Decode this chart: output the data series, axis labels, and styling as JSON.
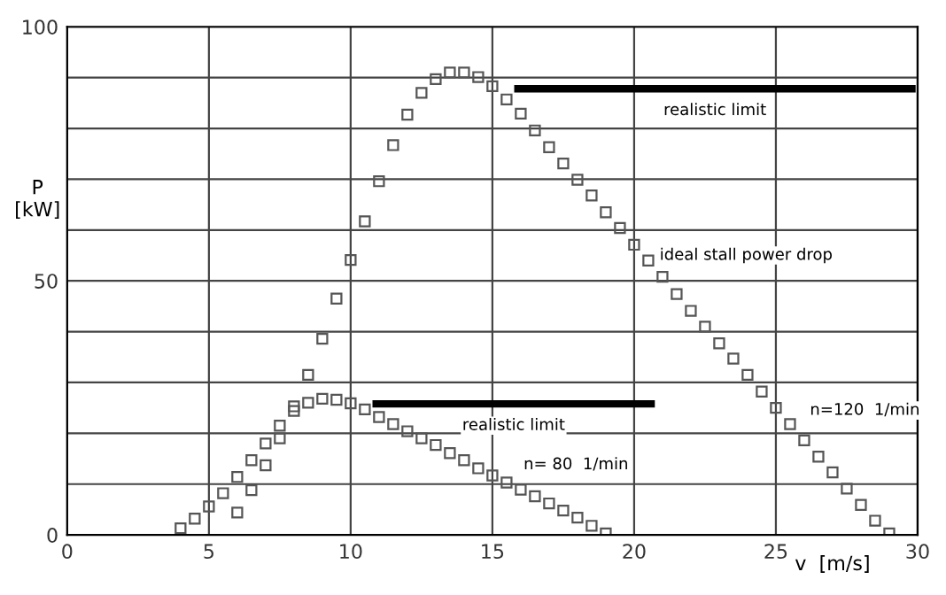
{
  "chart_data": {
    "type": "scatter",
    "xlabel": "v  [m/s]",
    "ylabel": "P\n[kW]",
    "marker": "square",
    "grid": true,
    "legend": false,
    "xlim": [
      0,
      30
    ],
    "xticks": [
      0,
      5,
      10,
      15,
      20,
      25,
      30
    ],
    "ylim": [
      0,
      100
    ],
    "yticks": [
      0,
      {
        "value": 10,
        "label": null
      },
      {
        "value": 20,
        "label": null
      },
      {
        "value": 30,
        "label": null
      },
      {
        "value": 40,
        "label": null
      },
      50,
      {
        "value": 60,
        "label": null
      },
      {
        "value": 70,
        "label": null
      },
      {
        "value": 80,
        "label": null
      },
      {
        "value": 90,
        "label": null
      },
      100
    ],
    "series": [
      {
        "name": "n= 80  1/min",
        "color": "#555555",
        "x": [
          4,
          4.5,
          5,
          5.5,
          6,
          6.5,
          7,
          7.5,
          8,
          8.5,
          9,
          9.5,
          10,
          10.5,
          11,
          11.5,
          12,
          12.5,
          13,
          13.5,
          14,
          14.5,
          15,
          15.5,
          16,
          16.5,
          17,
          17.5,
          18,
          18.5,
          19
        ],
        "values": [
          1.3,
          3.2,
          5.6,
          8.2,
          11.4,
          14.7,
          18,
          21.5,
          25.3,
          26,
          26.8,
          26.6,
          25.9,
          24.7,
          23.2,
          21.8,
          20.4,
          19,
          17.7,
          16.1,
          14.7,
          13.1,
          11.7,
          10.3,
          8.9,
          7.6,
          6.2,
          4.8,
          3.4,
          1.8,
          0.3
        ]
      },
      {
        "name": "n=120  1/min",
        "color": "#555555",
        "x": [
          6,
          6.5,
          7,
          7.5,
          8,
          8.5,
          9,
          9.5,
          10,
          10.5,
          11,
          11.5,
          12,
          12.5,
          13,
          13.5,
          14,
          14.5,
          15,
          15.5,
          16,
          16.5,
          17,
          17.5,
          18,
          18.5,
          19,
          19.5,
          20,
          20.5,
          21,
          21.5,
          22,
          22.5,
          23,
          23.5,
          24,
          24.5,
          25,
          25.5,
          26,
          26.5,
          27,
          27.5,
          28,
          28.5,
          29
        ],
        "values": [
          4.4,
          8.8,
          13.7,
          19,
          24.4,
          31.5,
          38.6,
          46.5,
          54.1,
          61.7,
          69.6,
          76.7,
          82.7,
          87,
          89.7,
          91,
          91,
          90.1,
          88.3,
          85.7,
          82.9,
          79.6,
          76.3,
          73.1,
          69.9,
          66.8,
          63.5,
          60.4,
          57.1,
          54,
          50.8,
          47.4,
          44.1,
          41,
          37.7,
          34.7,
          31.5,
          28.2,
          25,
          21.8,
          18.6,
          15.4,
          12.3,
          9.1,
          5.9,
          2.8,
          0.3
        ]
      },
      {
        "type": "line",
        "name": "realistic limit",
        "color": "#000000",
        "marker": "none",
        "x": [
          15.9,
          29.8
        ],
        "values": [
          87.8,
          87.8
        ]
      },
      {
        "type": "line",
        "name": "realistic limit",
        "color": "#000000",
        "marker": "none",
        "x": [
          10.9,
          20.6
        ],
        "values": [
          25.8,
          25.8
        ]
      }
    ],
    "annotations": [
      {
        "text": "ideal stall power drop",
        "x": 20.5,
        "y": 54
      }
    ]
  }
}
